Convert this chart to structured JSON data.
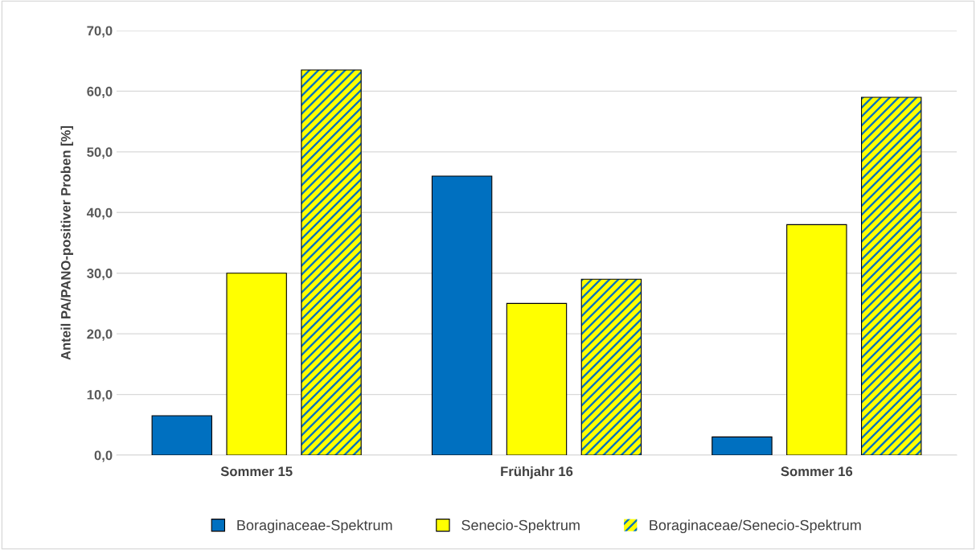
{
  "chart_data": {
    "type": "bar",
    "ylabel": "Anteil PA/PANO-positiver Proben [%]",
    "categories": [
      "Sommer 15",
      "Frühjahr 16",
      "Sommer 16"
    ],
    "series": [
      {
        "name": "Boraginaceae-Spektrum",
        "color": "#0070c0",
        "values": [
          6.5,
          46.0,
          3.0
        ]
      },
      {
        "name": "Senecio-Spektrum",
        "color": "#ffff00",
        "values": [
          30.0,
          25.0,
          38.0
        ]
      },
      {
        "name": "Boraginaceae/Senecio-Spektrum",
        "color": "#0070c0",
        "values": [
          63.5,
          29.0,
          59.0
        ]
      }
    ],
    "ylim": [
      0,
      70
    ],
    "yticks": [
      {
        "value": 0,
        "label": "0,0"
      },
      {
        "value": 10,
        "label": "10,0"
      },
      {
        "value": 20,
        "label": "20,0"
      },
      {
        "value": 30,
        "label": "30,0"
      },
      {
        "value": 40,
        "label": "40,0"
      },
      {
        "value": 50,
        "label": "50,0"
      },
      {
        "value": 60,
        "label": "60,0"
      },
      {
        "value": 70,
        "label": "70,0"
      }
    ],
    "grid": "y",
    "legend": "bottom"
  }
}
